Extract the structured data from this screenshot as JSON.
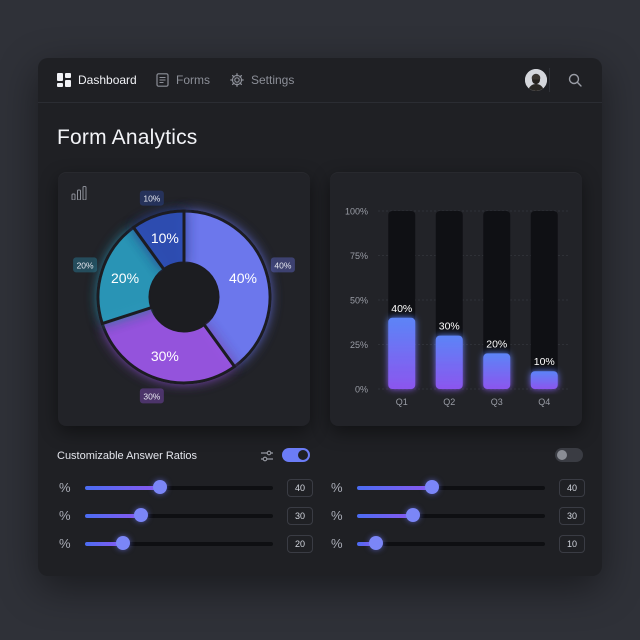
{
  "nav": {
    "items": [
      {
        "label": "Dashboard",
        "icon": "dashboard-icon",
        "active": true
      },
      {
        "label": "Forms",
        "icon": "document-icon",
        "active": false
      },
      {
        "label": "Settings",
        "icon": "gear-icon",
        "active": false
      }
    ],
    "search_icon": "search-icon"
  },
  "page": {
    "title": "Form Analytics"
  },
  "chart_data": [
    {
      "type": "pie",
      "categories": [
        "Q1",
        "Q2",
        "Q3",
        "Q4"
      ],
      "values": [
        40,
        30,
        20,
        10
      ],
      "labels": [
        "40%",
        "30%",
        "20%",
        "10%"
      ],
      "colors": [
        "#6f7cf7",
        "#9b56e6",
        "#2a9bbd",
        "#2d4fb8"
      ]
    },
    {
      "type": "bar",
      "categories": [
        "Q1",
        "Q2",
        "Q3",
        "Q4"
      ],
      "values": [
        40,
        30,
        20,
        10
      ],
      "data_labels": [
        "40%",
        "30%",
        "20%",
        "10%"
      ],
      "y_ticks": [
        "0%",
        "25%",
        "50%",
        "75%",
        "100%"
      ],
      "ylim": [
        0,
        100
      ],
      "grid": true
    }
  ],
  "controls": {
    "label": "Customizable Answer Ratios",
    "filter_icon": "sliders-icon",
    "left_toggle_on": true,
    "right_toggle_on": false,
    "percent_symbol": "%",
    "left_sliders": [
      {
        "value": 40,
        "display": "40"
      },
      {
        "value": 30,
        "display": "30"
      },
      {
        "value": 20,
        "display": "20"
      }
    ],
    "right_sliders": [
      {
        "value": 40,
        "display": "40"
      },
      {
        "value": 30,
        "display": "30"
      },
      {
        "value": 10,
        "display": "10"
      }
    ]
  },
  "colors": {
    "accent": "#6b7cf6",
    "background": "#1f2024",
    "card": "#222328"
  }
}
